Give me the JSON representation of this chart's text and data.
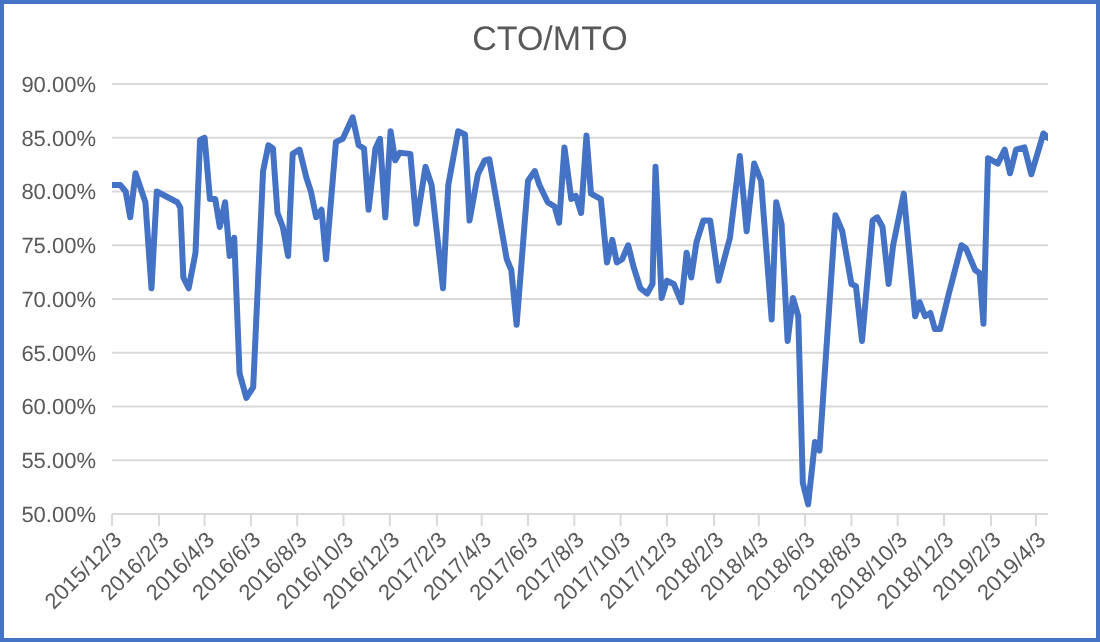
{
  "chart_data": {
    "type": "line",
    "title": "CTO/MTO",
    "x": [
      "2015-12-04",
      "2015-12-14",
      "2015-12-21",
      "2015-12-27",
      "2016-01-03",
      "2016-01-16",
      "2016-01-24",
      "2016-01-31",
      "2016-02-27",
      "2016-03-02",
      "2016-03-06",
      "2016-03-13",
      "2016-03-22",
      "2016-03-28",
      "2016-04-03",
      "2016-04-10",
      "2016-04-17",
      "2016-04-23",
      "2016-04-30",
      "2016-05-06",
      "2016-05-12",
      "2016-05-19",
      "2016-05-28",
      "2016-06-06",
      "2016-06-19",
      "2016-06-26",
      "2016-07-02",
      "2016-07-08",
      "2016-07-15",
      "2016-07-22",
      "2016-07-28",
      "2016-08-06",
      "2016-08-15",
      "2016-08-21",
      "2016-08-28",
      "2016-09-04",
      "2016-09-10",
      "2016-09-23",
      "2016-10-02",
      "2016-10-15",
      "2016-10-23",
      "2016-10-30",
      "2016-11-05",
      "2016-11-14",
      "2016-11-20",
      "2016-11-27",
      "2016-12-04",
      "2016-12-10",
      "2016-12-16",
      "2016-12-30",
      "2017-01-07",
      "2017-01-19",
      "2017-01-27",
      "2017-02-11",
      "2017-02-18",
      "2017-03-03",
      "2017-03-12",
      "2017-03-18",
      "2017-03-29",
      "2017-04-07",
      "2017-04-13",
      "2017-05-06",
      "2017-05-12",
      "2017-05-19",
      "2017-06-03",
      "2017-06-12",
      "2017-06-18",
      "2017-06-29",
      "2017-07-08",
      "2017-07-14",
      "2017-07-21",
      "2017-07-30",
      "2017-08-05",
      "2017-08-12",
      "2017-08-19",
      "2017-08-25",
      "2017-09-07",
      "2017-09-15",
      "2017-09-22",
      "2017-09-28",
      "2017-10-05",
      "2017-10-13",
      "2017-10-20",
      "2017-10-29",
      "2017-11-07",
      "2017-11-14",
      "2017-11-18",
      "2017-11-26",
      "2017-12-03",
      "2017-12-12",
      "2017-12-22",
      "2017-12-29",
      "2018-01-04",
      "2018-01-11",
      "2018-01-20",
      "2018-01-29",
      "2018-02-09",
      "2018-02-24",
      "2018-03-09",
      "2018-03-18",
      "2018-03-28",
      "2018-04-06",
      "2018-04-20",
      "2018-04-26",
      "2018-05-03",
      "2018-05-11",
      "2018-05-18",
      "2018-05-25",
      "2018-05-31",
      "2018-06-07",
      "2018-06-16",
      "2018-06-22",
      "2018-07-13",
      "2018-07-22",
      "2018-08-03",
      "2018-08-09",
      "2018-08-17",
      "2018-08-31",
      "2018-09-06",
      "2018-09-13",
      "2018-09-21",
      "2018-09-27",
      "2018-10-11",
      "2018-10-26",
      "2018-11-01",
      "2018-11-08",
      "2018-11-15",
      "2018-11-21",
      "2018-11-28",
      "2018-12-09",
      "2018-12-26",
      "2019-01-01",
      "2019-01-13",
      "2019-01-19",
      "2019-01-24",
      "2019-01-30",
      "2019-02-12",
      "2019-02-21",
      "2019-02-28",
      "2019-03-08",
      "2019-03-19",
      "2019-03-28",
      "2019-04-13",
      "2019-04-19"
    ],
    "series": [
      {
        "color": "#4472c4",
        "values": [
          80.6,
          80.6,
          80.0,
          77.6,
          81.7,
          79.0,
          71.0,
          80.0,
          79.0,
          78.5,
          72.0,
          71.0,
          74.3,
          84.8,
          85.0,
          79.3,
          79.3,
          76.7,
          79.0,
          74.0,
          75.7,
          63.1,
          60.8,
          61.8,
          81.9,
          84.3,
          84.0,
          78.0,
          76.7,
          74.0,
          83.5,
          83.9,
          81.3,
          80.0,
          77.6,
          78.3,
          73.7,
          84.6,
          84.9,
          86.9,
          84.3,
          84.0,
          78.3,
          84.0,
          84.9,
          77.6,
          85.6,
          82.9,
          83.6,
          83.5,
          77.0,
          82.3,
          80.6,
          71.0,
          80.6,
          85.6,
          85.3,
          77.3,
          81.6,
          82.9,
          83.0,
          73.7,
          72.7,
          67.6,
          81.0,
          81.9,
          80.6,
          79.0,
          78.6,
          77.1,
          84.1,
          79.3,
          79.6,
          78.0,
          85.2,
          79.8,
          79.3,
          73.4,
          75.5,
          73.4,
          73.7,
          75.0,
          73.0,
          71.0,
          70.5,
          71.4,
          82.3,
          70.1,
          71.7,
          71.4,
          69.7,
          74.3,
          72.0,
          75.3,
          77.3,
          77.3,
          71.7,
          75.7,
          83.3,
          76.3,
          82.6,
          81.0,
          68.1,
          79.0,
          77.0,
          66.1,
          70.1,
          68.4,
          52.9,
          50.9,
          56.7,
          55.9,
          77.8,
          76.3,
          71.4,
          71.2,
          66.1,
          77.3,
          77.6,
          76.7,
          71.4,
          75.0,
          79.8,
          68.4,
          69.7,
          68.4,
          68.7,
          67.2,
          67.2,
          70.4,
          75.0,
          74.7,
          72.7,
          72.4,
          67.7,
          83.1,
          82.6,
          83.9,
          81.7,
          83.9,
          84.1,
          81.6,
          85.4,
          85.0
        ]
      }
    ],
    "xlim": [
      "2015-12-03",
      "2019-04-19"
    ],
    "xticks": [
      {
        "value": "2015-12-03",
        "label": "2015/12/3"
      },
      {
        "value": "2016-02-03",
        "label": "2016/2/3"
      },
      {
        "value": "2016-04-03",
        "label": "2016/4/3"
      },
      {
        "value": "2016-06-03",
        "label": "2016/6/3"
      },
      {
        "value": "2016-08-03",
        "label": "2016/8/3"
      },
      {
        "value": "2016-10-03",
        "label": "2016/10/3"
      },
      {
        "value": "2016-12-03",
        "label": "2016/12/3"
      },
      {
        "value": "2017-02-03",
        "label": "2017/2/3"
      },
      {
        "value": "2017-04-03",
        "label": "2017/4/3"
      },
      {
        "value": "2017-06-03",
        "label": "2017/6/3"
      },
      {
        "value": "2017-08-03",
        "label": "2017/8/3"
      },
      {
        "value": "2017-10-03",
        "label": "2017/10/3"
      },
      {
        "value": "2017-12-03",
        "label": "2017/12/3"
      },
      {
        "value": "2018-02-03",
        "label": "2018/2/3"
      },
      {
        "value": "2018-04-03",
        "label": "2018/4/3"
      },
      {
        "value": "2018-06-03",
        "label": "2018/6/3"
      },
      {
        "value": "2018-08-03",
        "label": "2018/8/3"
      },
      {
        "value": "2018-10-03",
        "label": "2018/10/3"
      },
      {
        "value": "2018-12-03",
        "label": "2018/12/3"
      },
      {
        "value": "2019-02-03",
        "label": "2019/2/3"
      },
      {
        "value": "2019-04-03",
        "label": "2019/4/3"
      }
    ],
    "ylim": [
      50,
      90
    ],
    "yticks": [
      {
        "value": 50,
        "label": "50.00%"
      },
      {
        "value": 55,
        "label": "55.00%"
      },
      {
        "value": 60,
        "label": "60.00%"
      },
      {
        "value": 65,
        "label": "65.00%"
      },
      {
        "value": 70,
        "label": "70.00%"
      },
      {
        "value": 75,
        "label": "75.00%"
      },
      {
        "value": 80,
        "label": "80.00%"
      },
      {
        "value": 85,
        "label": "85.00%"
      },
      {
        "value": 90,
        "label": "90.00%"
      }
    ],
    "grid": "y",
    "marker": "none",
    "line_style": "solid"
  }
}
